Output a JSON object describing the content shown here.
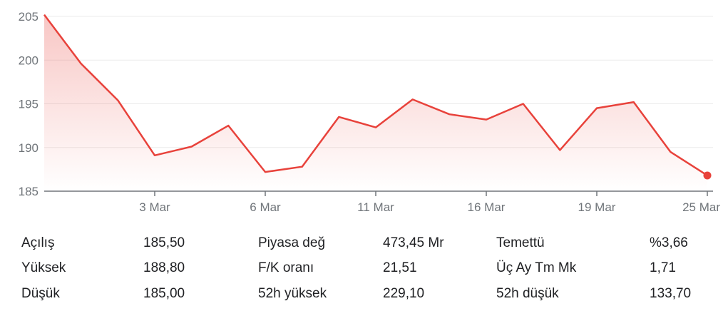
{
  "chart_data": {
    "type": "line",
    "title": "",
    "xlabel": "",
    "ylabel": "",
    "x_ticks": [
      "3 Mar",
      "6 Mar",
      "11 Mar",
      "16 Mar",
      "19 Mar",
      "25 Mar"
    ],
    "y_ticks": [
      185,
      190,
      195,
      200,
      205
    ],
    "ylim": [
      185,
      205
    ],
    "grid": true,
    "series": [
      {
        "values": [
          205.2,
          199.6,
          195.4,
          189.1,
          190.1,
          192.5,
          187.2,
          187.8,
          193.5,
          192.3,
          195.5,
          193.8,
          193.2,
          195.0,
          189.7,
          194.5,
          195.2,
          189.5,
          186.8
        ]
      }
    ],
    "line_color": "#e8423b"
  },
  "stats": [
    [
      {
        "label": "Açılış",
        "value": "185,50"
      },
      {
        "label": "Piyasa değ",
        "value": "473,45 Mr"
      },
      {
        "label": "Temettü",
        "value": "%3,66"
      }
    ],
    [
      {
        "label": "Yüksek",
        "value": "188,80"
      },
      {
        "label": "F/K oranı",
        "value": "21,51"
      },
      {
        "label": "Üç Ay Tm Mk",
        "value": "1,71"
      }
    ],
    [
      {
        "label": "Düşük",
        "value": "185,00"
      },
      {
        "label": "52h yüksek",
        "value": "229,10"
      },
      {
        "label": "52h düşük",
        "value": "133,70"
      }
    ]
  ]
}
